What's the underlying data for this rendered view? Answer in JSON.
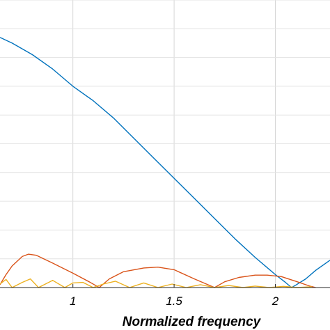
{
  "chart_data": {
    "type": "line",
    "title": "",
    "xlabel": "Normalized frequency",
    "ylabel": "",
    "xlim": [
      0.64,
      2.27
    ],
    "ylim": [
      0,
      1.0
    ],
    "grid": true,
    "x_ticks": [
      1,
      1.5,
      2
    ],
    "x_tick_labels": [
      "1",
      "1.5",
      "2"
    ],
    "y_ticks": [
      0,
      0.1,
      0.2,
      0.3,
      0.4,
      0.5,
      0.6,
      0.7,
      0.8,
      0.9,
      1.0
    ],
    "series": [
      {
        "color": "#0072BD",
        "x": [
          0.64,
          0.7,
          0.8,
          0.9,
          1.0,
          1.1,
          1.2,
          1.3,
          1.4,
          1.5,
          1.6,
          1.7,
          1.8,
          1.9,
          2.0,
          2.05,
          2.08,
          2.1,
          2.15,
          2.2,
          2.27
        ],
        "y": [
          0.87,
          0.85,
          0.81,
          0.76,
          0.7,
          0.65,
          0.59,
          0.52,
          0.45,
          0.38,
          0.31,
          0.24,
          0.17,
          0.105,
          0.045,
          0.018,
          0.0,
          0.008,
          0.03,
          0.06,
          0.095
        ]
      },
      {
        "color": "#D95319",
        "x": [
          0.64,
          0.67,
          0.7,
          0.75,
          0.78,
          0.82,
          0.9,
          1.0,
          1.08,
          1.13,
          1.18,
          1.25,
          1.35,
          1.42,
          1.5,
          1.6,
          1.7,
          1.75,
          1.82,
          1.9,
          1.96,
          2.03,
          2.1,
          2.17,
          2.2
        ],
        "y": [
          0.01,
          0.045,
          0.075,
          0.108,
          0.116,
          0.112,
          0.085,
          0.05,
          0.02,
          0.0,
          0.03,
          0.055,
          0.068,
          0.071,
          0.062,
          0.03,
          0.0,
          0.02,
          0.035,
          0.043,
          0.043,
          0.038,
          0.022,
          0.005,
          0.0
        ]
      },
      {
        "color": "#EDB120",
        "x": [
          0.64,
          0.67,
          0.7,
          0.75,
          0.79,
          0.83,
          0.9,
          0.96,
          1.0,
          1.05,
          1.1,
          1.15,
          1.21,
          1.28,
          1.35,
          1.42,
          1.49,
          1.56,
          1.63,
          1.7,
          1.77,
          1.84,
          1.9,
          1.97,
          2.04,
          2.11,
          2.18
        ],
        "y": [
          0.012,
          0.028,
          0.0,
          0.018,
          0.03,
          0.0,
          0.025,
          0.0,
          0.016,
          0.018,
          0.0,
          0.012,
          0.022,
          0.0,
          0.016,
          0.0,
          0.012,
          0.0,
          0.01,
          0.0,
          0.007,
          0.0,
          0.005,
          0.0,
          0.004,
          0.0,
          0.003
        ]
      }
    ]
  }
}
